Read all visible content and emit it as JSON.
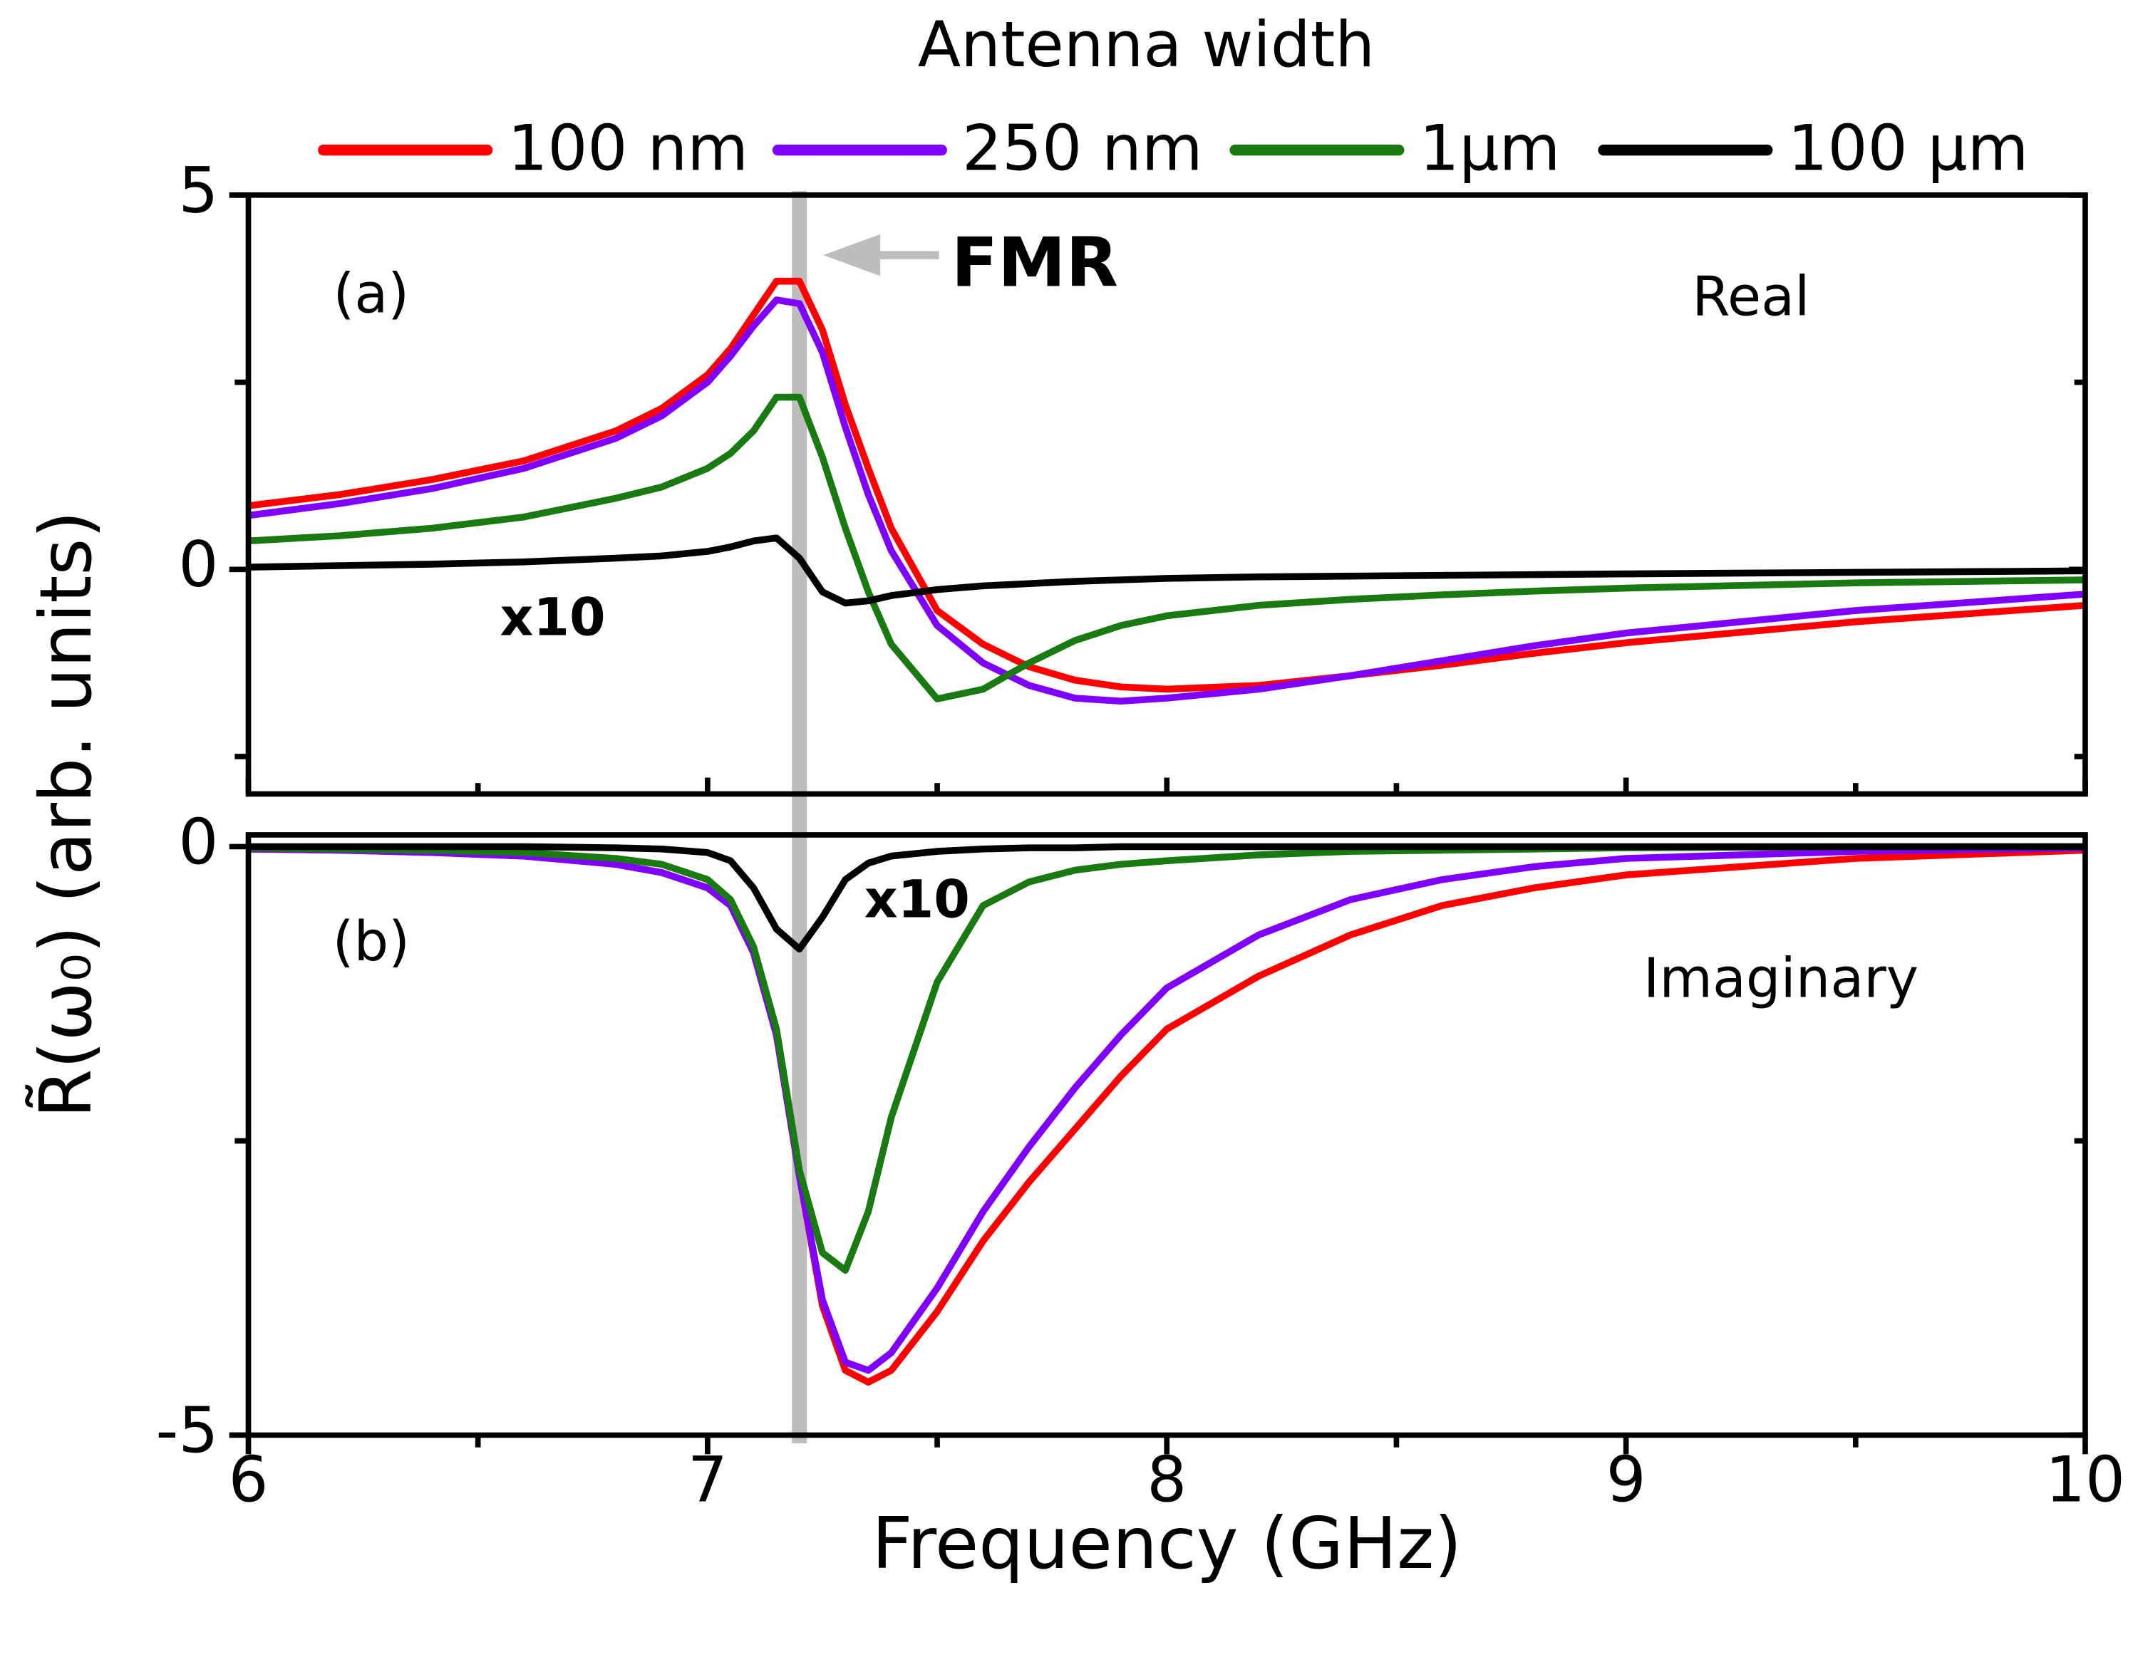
{
  "chart_data": {
    "type": "line",
    "legend_title": "Antenna width",
    "xlabel": "Frequency (GHz)",
    "ylabel": "R̃(ω₀) (arb. units)",
    "xlim": [
      6,
      10
    ],
    "xticks": [
      6,
      7,
      8,
      9,
      10
    ],
    "xminorticks": [
      6.5,
      7.5,
      8.5,
      9.5
    ],
    "fmr": {
      "label": "FMR",
      "x": 7.2,
      "color": "#bdbdbd"
    },
    "x": [
      6,
      6.2,
      6.4,
      6.6,
      6.8,
      6.9,
      7.0,
      7.05,
      7.1,
      7.15,
      7.2,
      7.25,
      7.3,
      7.35,
      7.4,
      7.5,
      7.6,
      7.7,
      7.8,
      7.9,
      8.0,
      8.2,
      8.4,
      8.6,
      8.8,
      9.0,
      9.5,
      10
    ],
    "panels": [
      {
        "label": "(a)",
        "annotation": "Real",
        "note": "x10",
        "ylim": [
          -3,
          5
        ],
        "yticks": [
          0,
          5
        ],
        "yminorticks": [
          -2.5,
          2.5
        ],
        "series": [
          {
            "name": "100 nm",
            "color": "#ff0000",
            "values": [
              0.85,
              1.0,
              1.2,
              1.45,
              1.85,
              2.15,
              2.6,
              2.95,
              3.4,
              3.85,
              3.85,
              3.2,
              2.2,
              1.35,
              0.55,
              -0.55,
              -1.0,
              -1.3,
              -1.48,
              -1.57,
              -1.6,
              -1.55,
              -1.42,
              -1.28,
              -1.12,
              -0.98,
              -0.7,
              -0.48
            ]
          },
          {
            "name": "250 nm",
            "color": "#7f00ff",
            "values": [
              0.72,
              0.88,
              1.08,
              1.35,
              1.75,
              2.05,
              2.5,
              2.85,
              3.25,
              3.6,
              3.55,
              2.9,
              1.9,
              1.0,
              0.25,
              -0.75,
              -1.25,
              -1.55,
              -1.72,
              -1.76,
              -1.72,
              -1.6,
              -1.42,
              -1.22,
              -1.02,
              -0.85,
              -0.55,
              -0.33
            ]
          },
          {
            "name": "1μm",
            "color": "#1a7a12",
            "values": [
              0.38,
              0.45,
              0.55,
              0.7,
              0.95,
              1.1,
              1.35,
              1.55,
              1.85,
              2.3,
              2.3,
              1.5,
              0.55,
              -0.3,
              -1.0,
              -1.73,
              -1.6,
              -1.25,
              -0.95,
              -0.75,
              -0.62,
              -0.48,
              -0.4,
              -0.34,
              -0.29,
              -0.25,
              -0.18,
              -0.14
            ]
          },
          {
            "name": "100 μm",
            "color": "#000000",
            "values": [
              0.03,
              0.05,
              0.07,
              0.1,
              0.15,
              0.18,
              0.24,
              0.3,
              0.38,
              0.42,
              0.15,
              -0.3,
              -0.45,
              -0.42,
              -0.35,
              -0.27,
              -0.22,
              -0.19,
              -0.16,
              -0.14,
              -0.12,
              -0.1,
              -0.09,
              -0.08,
              -0.07,
              -0.06,
              -0.04,
              -0.02
            ]
          }
        ]
      },
      {
        "label": "(b)",
        "annotation": "Imaginary",
        "note": "x10",
        "ylim": [
          -5,
          0.1
        ],
        "yticks": [
          -5,
          0
        ],
        "yminorticks": [
          -2.5
        ],
        "series": [
          {
            "color": "#ff0000",
            "values": [
              -0.02,
              -0.03,
              -0.05,
              -0.08,
              -0.15,
              -0.22,
              -0.35,
              -0.5,
              -0.9,
              -1.6,
              -2.8,
              -3.9,
              -4.45,
              -4.55,
              -4.45,
              -3.95,
              -3.35,
              -2.85,
              -2.4,
              -1.95,
              -1.55,
              -1.1,
              -0.75,
              -0.5,
              -0.35,
              -0.24,
              -0.1,
              -0.03
            ]
          },
          {
            "color": "#7f00ff",
            "values": [
              -0.02,
              -0.03,
              -0.05,
              -0.08,
              -0.15,
              -0.22,
              -0.35,
              -0.5,
              -0.9,
              -1.6,
              -2.8,
              -3.85,
              -4.38,
              -4.45,
              -4.3,
              -3.75,
              -3.1,
              -2.55,
              -2.05,
              -1.6,
              -1.2,
              -0.75,
              -0.45,
              -0.28,
              -0.17,
              -0.1,
              -0.04,
              -0.01
            ]
          },
          {
            "color": "#1a7a12",
            "values": [
              -0.01,
              -0.02,
              -0.03,
              -0.05,
              -0.1,
              -0.15,
              -0.28,
              -0.45,
              -0.85,
              -1.55,
              -2.75,
              -3.45,
              -3.6,
              -3.1,
              -2.3,
              -1.15,
              -0.5,
              -0.3,
              -0.2,
              -0.15,
              -0.12,
              -0.07,
              -0.04,
              -0.03,
              -0.02,
              -0.01,
              0,
              0
            ]
          },
          {
            "color": "#000000",
            "values": [
              0,
              0,
              0,
              0,
              -0.01,
              -0.02,
              -0.05,
              -0.12,
              -0.35,
              -0.7,
              -0.87,
              -0.6,
              -0.28,
              -0.14,
              -0.08,
              -0.04,
              -0.02,
              -0.01,
              -0.01,
              0,
              0,
              0,
              0,
              0,
              0,
              0,
              0,
              0
            ]
          }
        ]
      }
    ]
  }
}
